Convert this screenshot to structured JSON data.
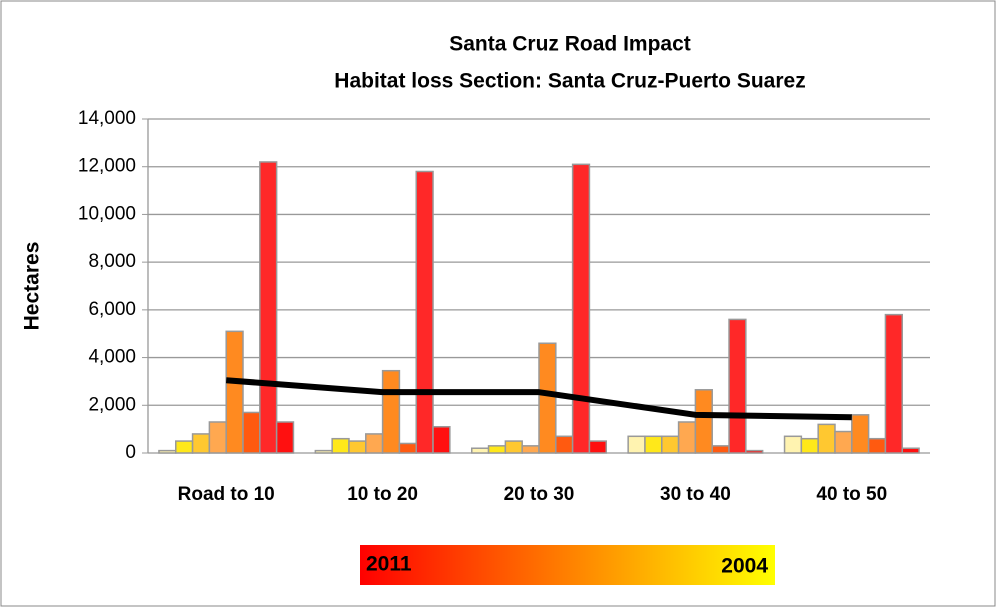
{
  "chart_data": {
    "type": "bar",
    "title": "Santa Cruz Road Impact",
    "subtitle": "Habitat loss Section: Santa Cruz-Puerto Suarez",
    "y_label": "Hectares",
    "categories": [
      "Road to 10",
      "10 to 20",
      "20 to 30",
      "30 to 40",
      "40 to 50"
    ],
    "series": [
      {
        "color": "#fff3b0",
        "values": [
          100,
          100,
          200,
          700,
          700
        ]
      },
      {
        "color": "#ffe81a",
        "values": [
          500,
          600,
          300,
          700,
          600
        ]
      },
      {
        "color": "#ffc830",
        "values": [
          800,
          500,
          500,
          700,
          1200
        ]
      },
      {
        "color": "#ffa850",
        "values": [
          1300,
          800,
          300,
          1300,
          900
        ]
      },
      {
        "color": "#ff8a20",
        "values": [
          5100,
          3450,
          4600,
          2650,
          1600
        ]
      },
      {
        "color": "#ff5a10",
        "values": [
          1700,
          400,
          700,
          300,
          600
        ]
      },
      {
        "color": "#ff2828",
        "values": [
          12200,
          11800,
          12100,
          5600,
          5800
        ]
      },
      {
        "color": "#ff1010",
        "values": [
          1300,
          1100,
          500,
          100,
          200
        ]
      },
      {
        "type": "line",
        "color": "#000000",
        "values": [
          3050,
          2550,
          2550,
          1600,
          1500
        ]
      }
    ],
    "legend_labels": [
      "2011",
      "2004"
    ],
    "ylim": [
      0,
      14000
    ],
    "yticks": [
      0,
      {
        "value": 2000,
        "label": "2,000"
      },
      {
        "value": 4000,
        "label": "4,000"
      },
      {
        "value": 6000,
        "label": "6,000"
      },
      {
        "value": 8000,
        "label": "8,000"
      },
      {
        "value": 10000,
        "label": "10,000"
      },
      {
        "value": 12000,
        "label": "12,000"
      },
      {
        "value": 14000,
        "label": "14,000"
      }
    ],
    "grid": true
  }
}
